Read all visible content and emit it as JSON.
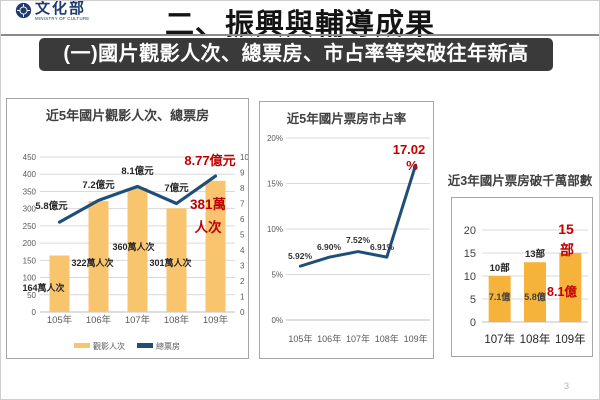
{
  "page": {
    "page_number": "3"
  },
  "header": {
    "logo_text": "文化部",
    "logo_subtext": "MINISTRY OF CULTURE",
    "title": "二、振興與輔導成果",
    "banner": "(一)國片觀影人次、總票房、市占率等突破往年新高"
  },
  "colors": {
    "bar_orange_left": "#F8C46D",
    "bar_orange_right": "#F5B33B",
    "line_navy": "#1F4E79",
    "highlight_red": "#C00000",
    "banner_bg": "#3A3A3A",
    "logo_navy": "#1E3A6E",
    "grid": "#D9D9D9",
    "axis_zero": "#BFBFBF",
    "axis_text": "#595959",
    "label_text": "#262626"
  },
  "chart_data": [
    {
      "type": "combo-bar-line",
      "title": "近5年國片觀影人次、總票房",
      "categories": [
        "105年",
        "106年",
        "107年",
        "108年",
        "109年"
      ],
      "series": [
        {
          "name": "觀影人次",
          "type": "bar",
          "unit": "萬人次",
          "values": [
            164,
            322,
            360,
            301,
            381
          ],
          "labels": [
            "164萬人次",
            "322萬人次",
            "360萬人次",
            "301萬人次",
            "381萬人次"
          ]
        },
        {
          "name": "總票房",
          "type": "line",
          "unit": "億元",
          "values": [
            5.8,
            7.2,
            8.1,
            7,
            8.77
          ],
          "labels": [
            "5.8億元",
            "7.2億元",
            "8.1億元",
            "7億元",
            "8.77億元"
          ]
        }
      ],
      "y_left": {
        "min": 0,
        "max": 450,
        "step": 50
      },
      "y_right": {
        "min": 0,
        "max": 10,
        "step": 1
      },
      "legend": [
        "觀影人次",
        "總票房"
      ]
    },
    {
      "type": "line",
      "title": "近5年國片票房市占率",
      "categories": [
        "105年",
        "106年",
        "107年",
        "108年",
        "109年"
      ],
      "values": [
        5.92,
        6.9,
        7.52,
        6.91,
        17.02
      ],
      "labels": [
        "5.92%",
        "6.90%",
        "7.52%",
        "6.91%",
        "17.02%"
      ],
      "y": {
        "min": 0,
        "max": 20,
        "step": 5,
        "suffix": "%"
      }
    },
    {
      "type": "bar",
      "title": "近3年國片票房破千萬部數",
      "categories": [
        "107年",
        "108年",
        "109年"
      ],
      "values": [
        10,
        13,
        15
      ],
      "count_labels": [
        "10部",
        "13部",
        "15部"
      ],
      "revenue_labels": [
        "7.1億",
        "5.8億",
        "8.1億"
      ],
      "y": {
        "min": 0,
        "max": 20,
        "step": 5
      }
    }
  ]
}
